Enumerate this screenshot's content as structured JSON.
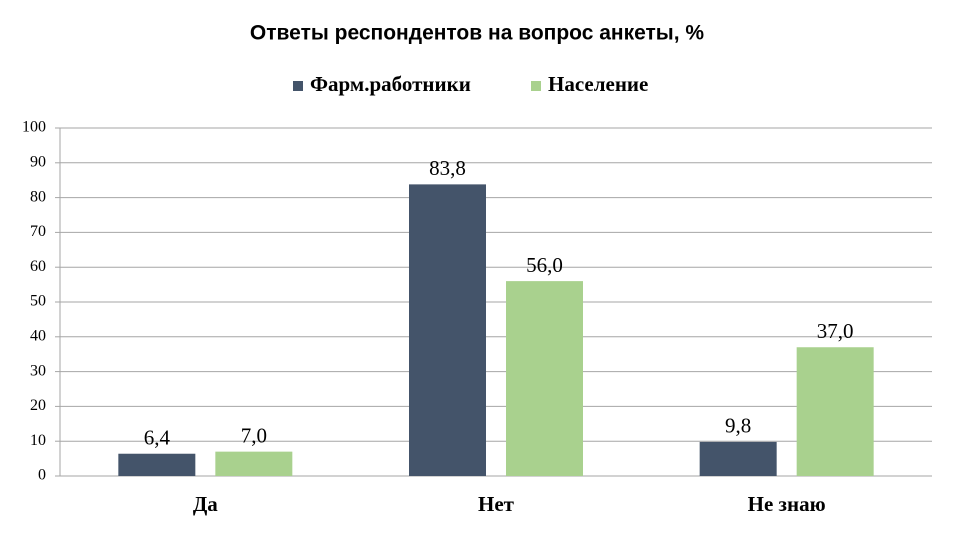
{
  "chart_data": {
    "type": "bar",
    "title": "Ответы респондентов на вопрос анкеты, %",
    "categories": [
      "Да",
      "Нет",
      "Не знаю"
    ],
    "series": [
      {
        "name": "Фарм.работники",
        "color": "#44546a",
        "values": [
          6.4,
          83.8,
          9.8
        ],
        "value_labels": [
          "6,4",
          "83,8",
          "9,8"
        ]
      },
      {
        "name": "Население",
        "color": "#a9d18e",
        "values": [
          7.0,
          56.0,
          37.0
        ],
        "value_labels": [
          "7,0",
          "56,0",
          "37,0"
        ]
      }
    ],
    "ylim": [
      0,
      100
    ],
    "yticks": [
      0,
      10,
      20,
      30,
      40,
      50,
      60,
      70,
      80,
      90,
      100
    ],
    "grid": true,
    "legend": "top"
  }
}
